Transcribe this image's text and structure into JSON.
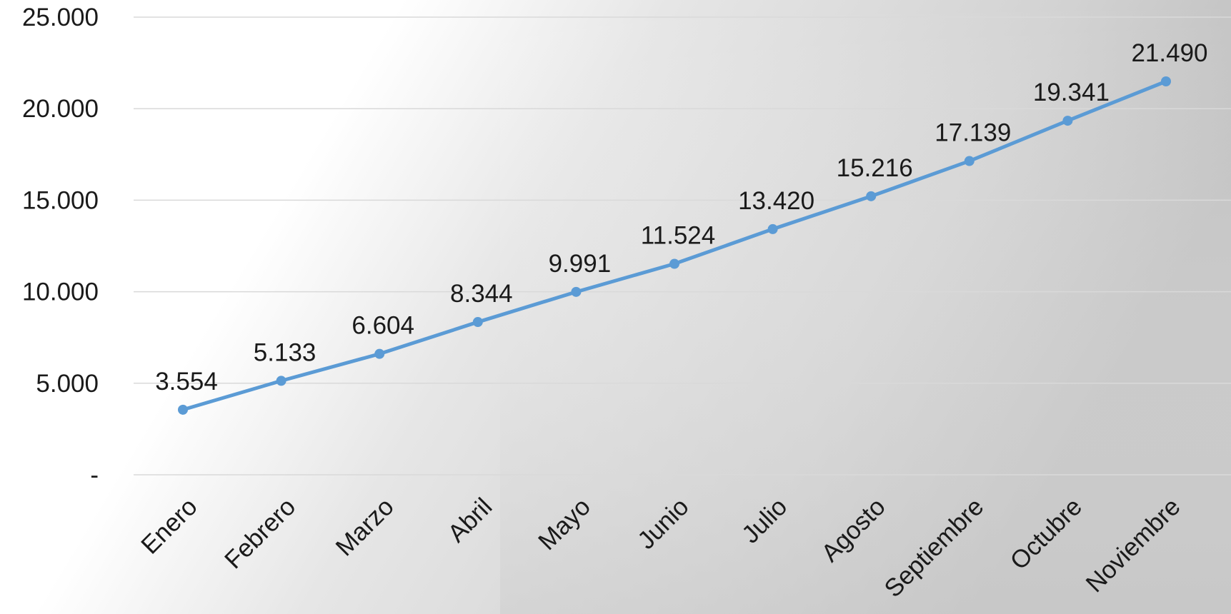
{
  "chart_data": {
    "type": "line",
    "categories": [
      "Enero",
      "Febrero",
      "Marzo",
      "Abril",
      "Mayo",
      "Junio",
      "Julio",
      "Agosto",
      "Septiembre",
      "Octubre",
      "Noviembre"
    ],
    "values": [
      3554,
      5133,
      6604,
      8344,
      9991,
      11524,
      13420,
      15216,
      17139,
      19341,
      21490
    ],
    "value_labels": [
      "3.554",
      "5.133",
      "6.604",
      "8.344",
      "9.991",
      "11.524",
      "13.420",
      "15.216",
      "17.139",
      "19.341",
      "21.490"
    ],
    "color": "#5b9bd5",
    "ylim": [
      0,
      25000
    ],
    "yticks": [
      {
        "value": 0,
        "label": "-"
      },
      {
        "value": 5000,
        "label": "5.000"
      },
      {
        "value": 10000,
        "label": "10.000"
      },
      {
        "value": 15000,
        "label": "15.000"
      },
      {
        "value": 20000,
        "label": "20.000"
      },
      {
        "value": 25000,
        "label": "25.000"
      }
    ],
    "grid": true
  }
}
